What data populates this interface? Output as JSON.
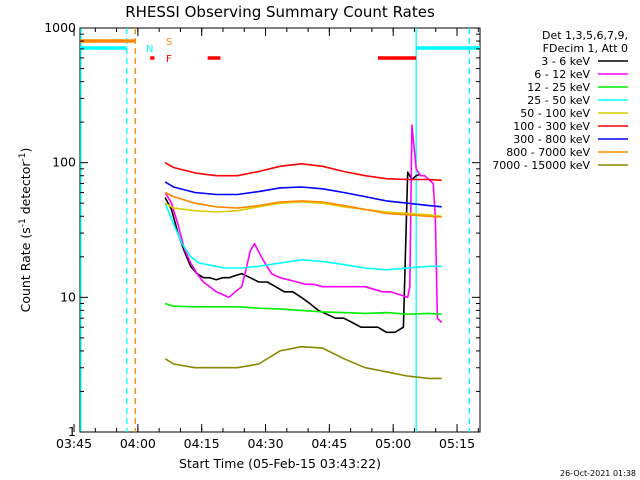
{
  "chart_data": {
    "type": "line",
    "title": "RHESSI Observing Summary Count Rates",
    "xlabel": "Start Time (05-Feb-15 03:43:22)",
    "ylabel": "Count Rate (s",
    "ylabel_sup": "-1",
    "ylabel_tail": " detector",
    "ylabel_sup2": "-1",
    "ylabel_close": ")",
    "yscale": "log",
    "ylim": [
      1,
      1000
    ],
    "xlim_minutes": [
      3.0,
      97.0
    ],
    "x_ticks": [
      {
        "label": "03:45",
        "min": 1.6
      },
      {
        "label": "04:00",
        "min": 16.6
      },
      {
        "label": "04:15",
        "min": 31.6
      },
      {
        "label": "04:30",
        "min": 46.6
      },
      {
        "label": "04:45",
        "min": 61.6
      },
      {
        "label": "05:00",
        "min": 76.6
      },
      {
        "label": "05:15",
        "min": 91.6
      }
    ],
    "y_ticks": [
      {
        "label": "1",
        "value": 1
      },
      {
        "label": "10",
        "value": 10
      },
      {
        "label": "100",
        "value": 100
      },
      {
        "label": "1000",
        "value": 1000
      }
    ],
    "legend_header": [
      "Det 1,3,5,6,7,9,",
      "FDecim 1, Att 0"
    ],
    "footer_date": "26-Oct-2021 01:38",
    "series": [
      {
        "name": "3 - 6 keV",
        "color": "#000000",
        "x": [
          23.0,
          24.5,
          26.0,
          27.5,
          29.0,
          30.5,
          32.0,
          33.5,
          35.0,
          36.5,
          38.0,
          39.5,
          41,
          43,
          45,
          47,
          49,
          51,
          53,
          55,
          57,
          59,
          61,
          63,
          65,
          67,
          69,
          71,
          73,
          75,
          77,
          79,
          80,
          81,
          82,
          83
        ],
        "y": [
          55,
          45,
          30,
          22,
          17,
          15,
          14,
          14,
          13.5,
          14,
          14,
          14.5,
          15,
          14,
          13,
          13,
          12,
          11,
          11,
          10,
          9,
          8,
          7.5,
          7,
          7,
          6.5,
          6,
          6,
          6,
          5.5,
          5.5,
          6,
          85,
          75,
          80,
          82
        ]
      },
      {
        "name": "6 - 12 keV",
        "color": "#ff00ff",
        "x": [
          23.0,
          24.5,
          26.0,
          27.5,
          29.0,
          30.5,
          32.0,
          33.5,
          35.0,
          36.5,
          38.0,
          39.5,
          41,
          42,
          43,
          44,
          46,
          48,
          50,
          52,
          54,
          56,
          58,
          60,
          62,
          64,
          66,
          68,
          70,
          72,
          74,
          76,
          78,
          80,
          80.5,
          81,
          82,
          83,
          84,
          85,
          86,
          86.5,
          87,
          88
        ],
        "y": [
          60,
          50,
          35,
          23,
          18,
          15,
          13,
          12,
          11,
          10.5,
          10,
          11,
          12,
          16,
          22,
          25,
          19,
          15,
          14,
          13.5,
          13,
          12.5,
          12.5,
          12,
          12,
          12,
          12,
          12,
          12,
          11.5,
          11,
          11,
          10.5,
          10,
          12,
          190,
          90,
          80,
          80,
          75,
          70,
          40,
          7,
          6.5
        ]
      },
      {
        "name": "12 - 25 keV",
        "color": "#00ee00",
        "x": [
          23,
          25,
          30,
          35,
          40,
          45,
          50,
          55,
          60,
          65,
          70,
          75,
          80,
          85,
          88
        ],
        "y": [
          9,
          8.6,
          8.5,
          8.5,
          8.5,
          8.3,
          8.2,
          8.0,
          7.8,
          7.7,
          7.6,
          7.7,
          7.5,
          7.6,
          7.5
        ]
      },
      {
        "name": "25 - 50 keV",
        "color": "#00ffff",
        "x": [
          23,
          25,
          27,
          29,
          31,
          33,
          35,
          37,
          39,
          41,
          45,
          50,
          55,
          60,
          65,
          70,
          75,
          80,
          85,
          88
        ],
        "y": [
          50,
          35,
          25,
          20,
          18,
          17.5,
          17,
          16.5,
          16.5,
          16.5,
          17,
          18,
          19,
          18.5,
          17.5,
          16.5,
          16.0,
          16.5,
          17,
          17
        ]
      },
      {
        "name": "50 - 100 keV",
        "color": "#ddcc00",
        "x": [
          23,
          25,
          30,
          35,
          40,
          45,
          50,
          55,
          60,
          65,
          70,
          75,
          80,
          85,
          88
        ],
        "y": [
          50,
          46,
          44,
          43,
          44,
          47,
          50,
          51,
          50,
          47,
          45,
          43,
          42,
          41,
          40
        ]
      },
      {
        "name": "100 - 300 keV",
        "color": "#ff0000",
        "x": [
          23,
          25,
          30,
          35,
          40,
          45,
          50,
          55,
          60,
          65,
          70,
          75,
          80,
          85,
          88
        ],
        "y": [
          100,
          92,
          84,
          80,
          80,
          86,
          94,
          98,
          94,
          86,
          80,
          76,
          75,
          75,
          74
        ]
      },
      {
        "name": "300 - 800 keV",
        "color": "#0000ff",
        "x": [
          23,
          25,
          30,
          35,
          40,
          45,
          50,
          55,
          60,
          65,
          70,
          75,
          80,
          85,
          88
        ],
        "y": [
          72,
          66,
          60,
          58,
          58,
          61,
          65,
          66,
          64,
          60,
          56,
          52,
          50,
          48,
          47
        ]
      },
      {
        "name": "800 - 7000 keV",
        "color": "#ff8800",
        "x": [
          23,
          25,
          30,
          35,
          40,
          45,
          50,
          55,
          60,
          65,
          70,
          75,
          80,
          85,
          88
        ],
        "y": [
          60,
          56,
          50,
          47,
          46,
          48,
          51,
          52,
          51,
          48,
          45,
          42,
          41,
          40,
          39.5
        ]
      },
      {
        "name": "7000 - 15000 keV",
        "color": "#888800",
        "x": [
          23,
          25,
          30,
          35,
          40,
          45,
          50,
          55,
          60,
          65,
          70,
          75,
          80,
          85,
          88
        ],
        "y": [
          3.5,
          3.2,
          3.0,
          3.0,
          3.0,
          3.2,
          4.0,
          4.3,
          4.2,
          3.5,
          3.0,
          2.8,
          2.6,
          2.5,
          2.5
        ]
      }
    ],
    "flags": [
      {
        "letter": "S",
        "color": "#ff8800",
        "segments": [
          [
            3.0,
            16.0
          ]
        ]
      },
      {
        "letter": "N",
        "color": "#00ffff",
        "segments": [
          [
            3.0,
            14.0
          ],
          [
            82.0,
            97.0
          ]
        ]
      },
      {
        "letter": "F",
        "color": "#ff0000",
        "segments": [
          [
            19.5,
            20.5
          ],
          [
            33.0,
            36.0
          ],
          [
            73.0,
            82.0
          ]
        ]
      }
    ],
    "vlines": [
      {
        "min": 3.2,
        "color": "#00ffff",
        "style": "solid"
      },
      {
        "min": 14.0,
        "color": "#00ffff",
        "style": "dashed"
      },
      {
        "min": 16.0,
        "color": "#ff8800",
        "style": "dashed"
      },
      {
        "min": 82.0,
        "color": "#00ffff",
        "style": "solid"
      },
      {
        "min": 94.5,
        "color": "#00ffff",
        "style": "dashed"
      }
    ]
  }
}
